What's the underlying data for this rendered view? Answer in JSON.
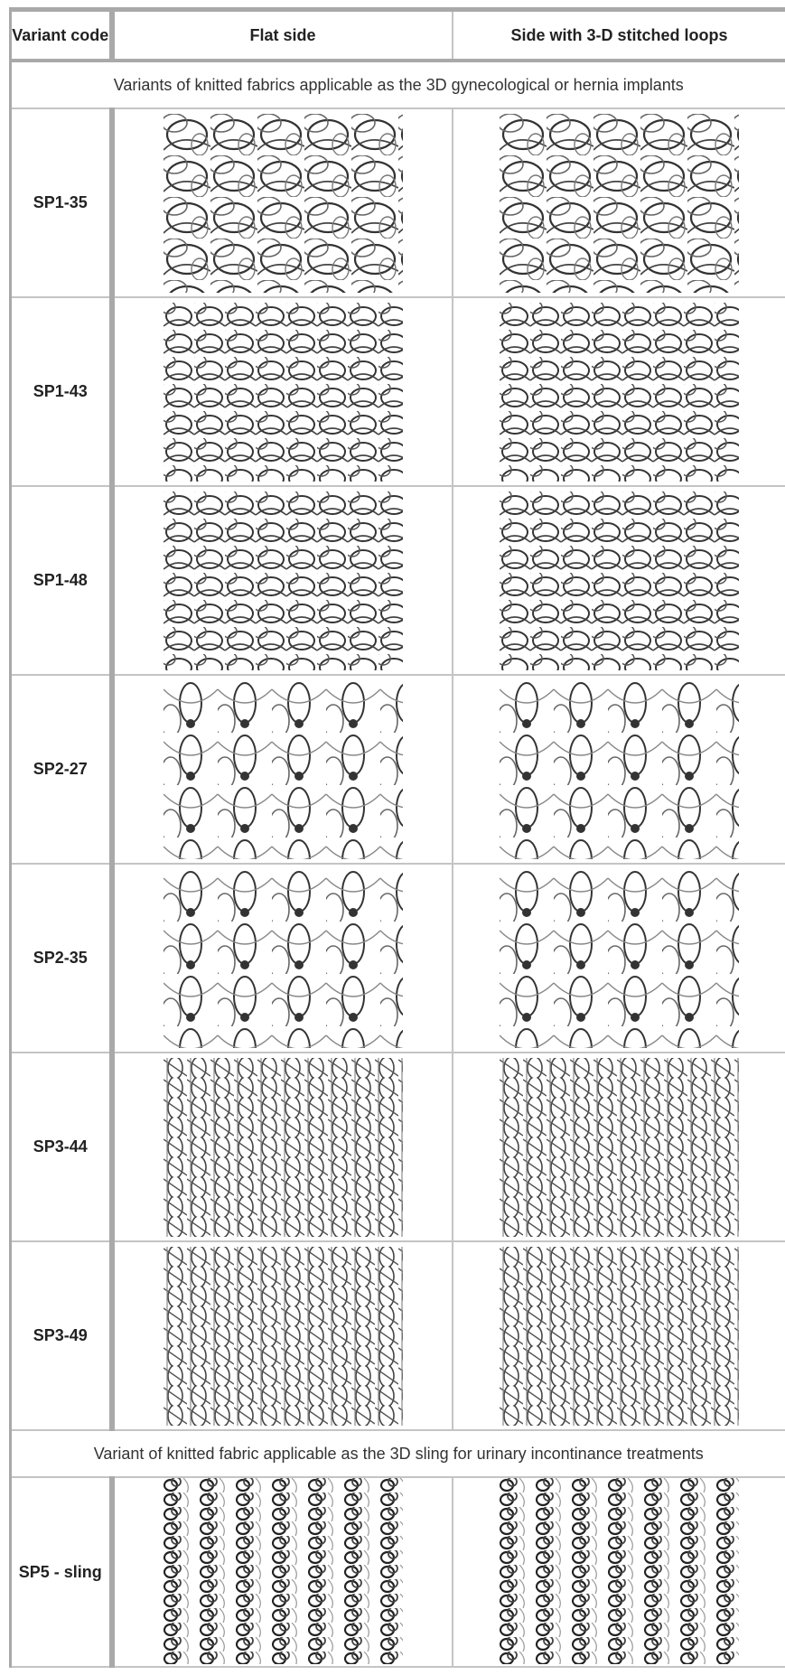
{
  "table": {
    "header": [
      "Variant code",
      "Flat side",
      "Side with 3-D stitched loops"
    ],
    "groups": [
      {
        "title": "Variants of knitted fabrics applicable as the 3D gynecological or hernia implants",
        "rows": [
          "SP1-35",
          "SP1-43",
          "SP1-48",
          "SP2-27",
          "SP2-35",
          "SP3-44",
          "SP3-49"
        ]
      },
      {
        "title": "Variant of knitted fabric applicable as the 3D sling for urinary incontinance treatments",
        "rows": [
          "SP5 - sling"
        ]
      }
    ]
  }
}
